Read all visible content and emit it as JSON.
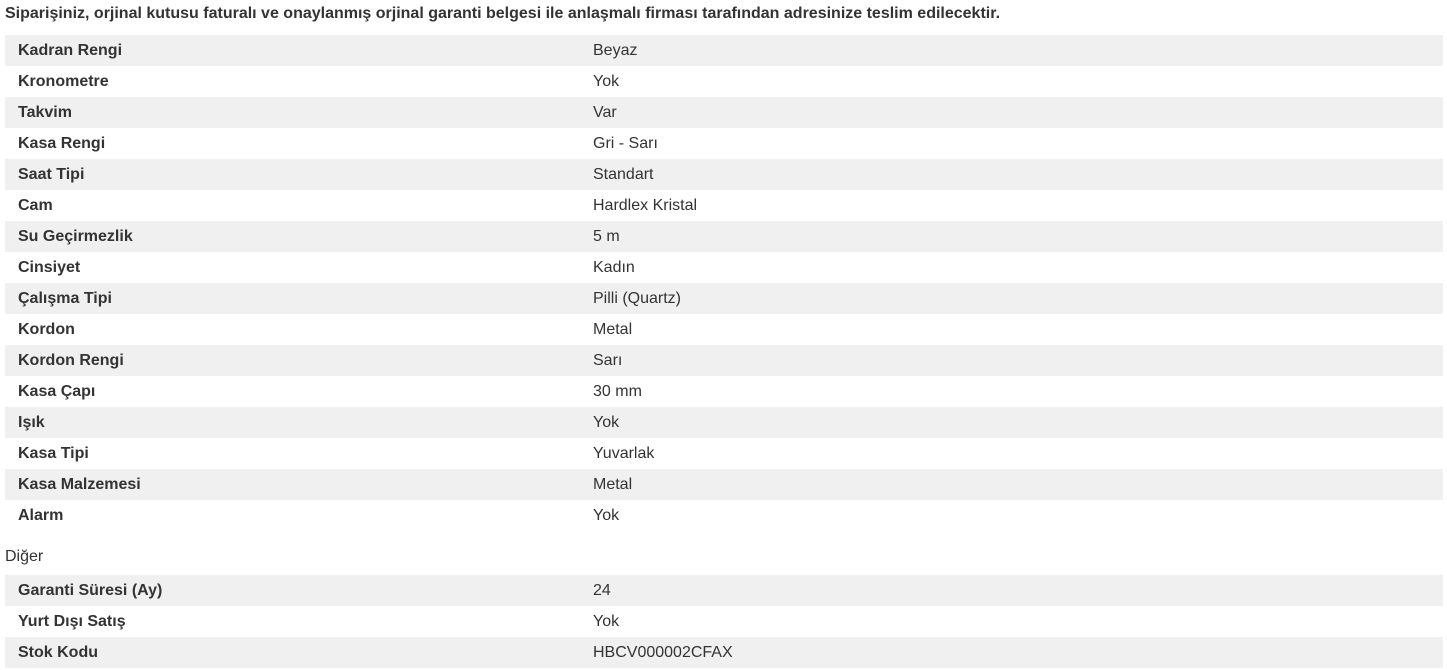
{
  "notice": "Siparişiniz, orjinal kutusu faturalı ve onaylanmış orjinal garanti belgesi ile anlaşmalı firması tarafından adresinize teslim edilecektir.",
  "specs": [
    {
      "label": "Kadran Rengi",
      "value": "Beyaz"
    },
    {
      "label": "Kronometre",
      "value": "Yok"
    },
    {
      "label": "Takvim",
      "value": "Var"
    },
    {
      "label": "Kasa Rengi",
      "value": "Gri - Sarı"
    },
    {
      "label": "Saat Tipi",
      "value": "Standart"
    },
    {
      "label": "Cam",
      "value": "Hardlex Kristal"
    },
    {
      "label": "Su Geçirmezlik",
      "value": "5 m"
    },
    {
      "label": "Cinsiyet",
      "value": "Kadın"
    },
    {
      "label": "Çalışma Tipi",
      "value": "Pilli (Quartz)"
    },
    {
      "label": "Kordon",
      "value": "Metal"
    },
    {
      "label": "Kordon Rengi",
      "value": "Sarı"
    },
    {
      "label": "Kasa Çapı",
      "value": "30 mm"
    },
    {
      "label": "Işık",
      "value": "Yok"
    },
    {
      "label": "Kasa Tipi",
      "value": "Yuvarlak"
    },
    {
      "label": "Kasa Malzemesi",
      "value": "Metal"
    },
    {
      "label": "Alarm",
      "value": "Yok"
    }
  ],
  "other_section": {
    "title": "Diğer",
    "specs": [
      {
        "label": "Garanti Süresi (Ay)",
        "value": "24"
      },
      {
        "label": "Yurt Dışı Satış",
        "value": "Yok"
      },
      {
        "label": "Stok Kodu",
        "value": "HBCV000002CFAX"
      }
    ]
  },
  "colors": {
    "row_alt_bg": "#f0f0f0",
    "text": "#333333"
  }
}
